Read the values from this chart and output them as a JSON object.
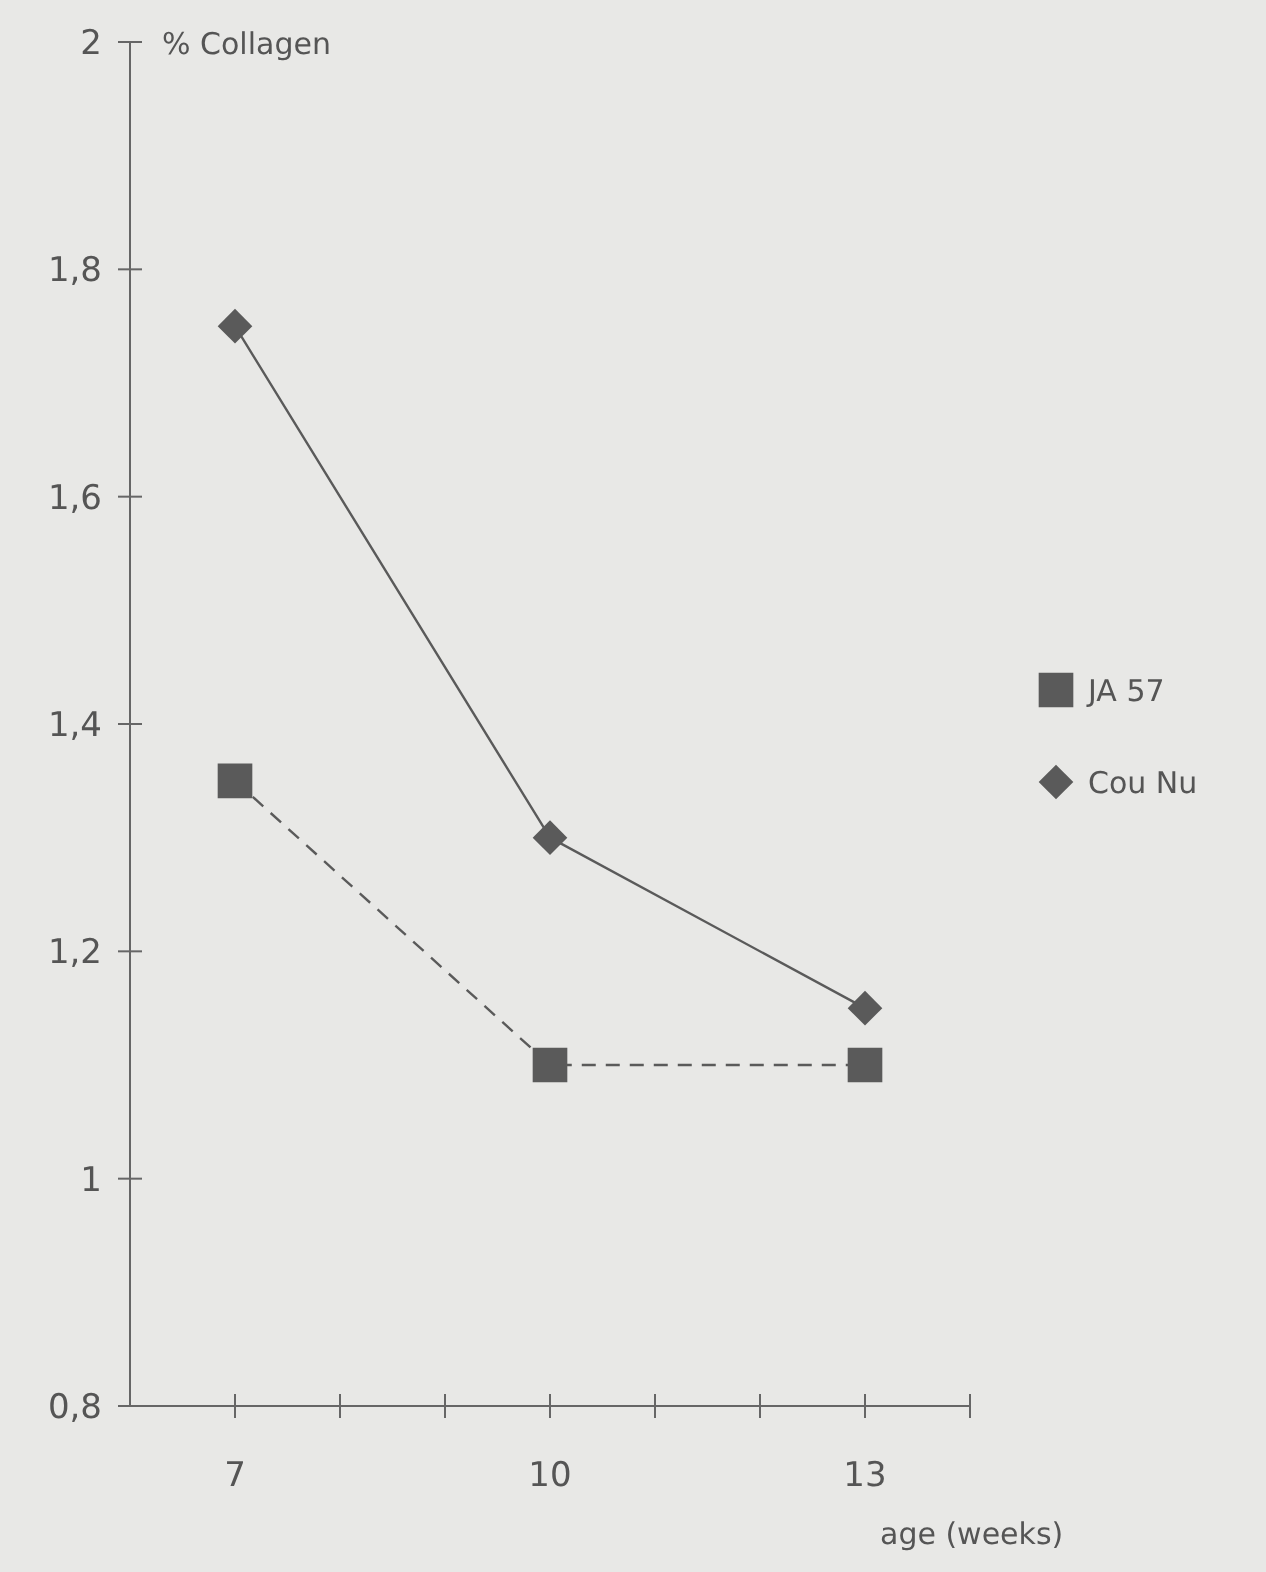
{
  "chart_data": {
    "type": "line",
    "ylabel": "% Collagen",
    "xlabel": "age (weeks)",
    "x": [
      7,
      10,
      13
    ],
    "xlim": [
      6,
      14
    ],
    "xticks": [
      7,
      {
        "value": 8,
        "label": null
      },
      {
        "value": 9,
        "label": null
      },
      10,
      {
        "value": 11,
        "label": null
      },
      {
        "value": 12,
        "label": null
      },
      13,
      {
        "value": 14,
        "label": null
      }
    ],
    "ylim": [
      0.8,
      2
    ],
    "yticks": [
      {
        "value": 0.8,
        "label": "0,8"
      },
      1,
      {
        "value": 1.2,
        "label": "1,2"
      },
      {
        "value": 1.4,
        "label": "1,4"
      },
      {
        "value": 1.6,
        "label": "1,6"
      },
      {
        "value": 1.8,
        "label": "1,8"
      },
      2
    ],
    "grid": false,
    "legend": "right",
    "series": [
      {
        "name": "JA 57",
        "color": "#5a5a5a",
        "values": [
          1.35,
          1.1,
          1.1
        ],
        "marker": "square",
        "line_style": "dashed"
      },
      {
        "name": "Cou Nu",
        "color": "#5a5a5a",
        "values": [
          1.75,
          1.3,
          1.15
        ],
        "marker": "diamond",
        "line_style": "solid"
      }
    ]
  }
}
